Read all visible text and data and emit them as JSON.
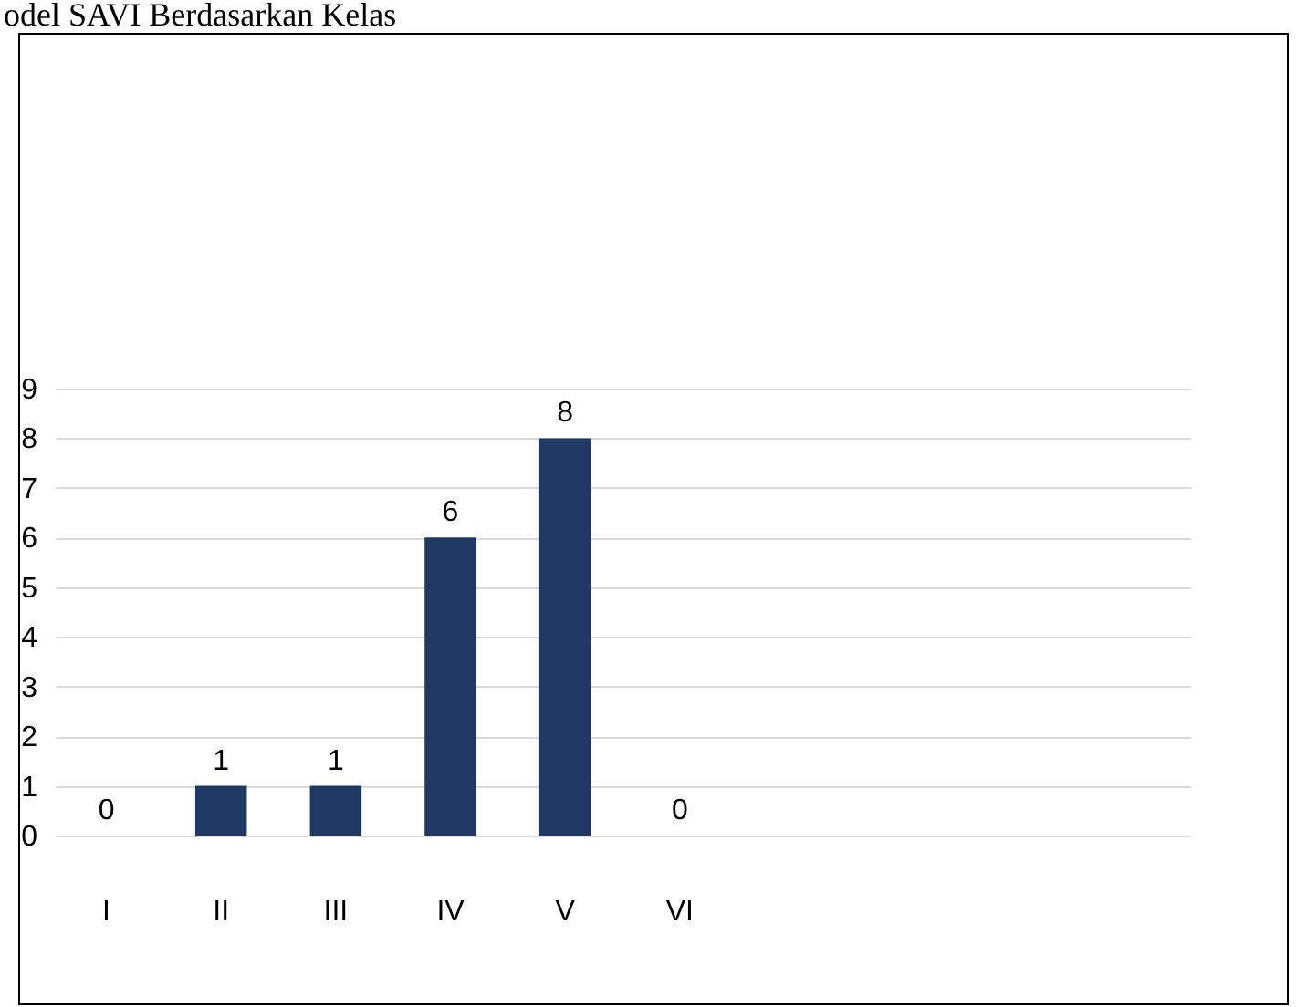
{
  "chart_data": {
    "type": "bar",
    "title": "odel SAVI Berdasarkan Kelas",
    "categories": [
      "I",
      "II",
      "III",
      "IV",
      "V",
      "VI",
      null,
      null,
      null,
      null
    ],
    "values": [
      0,
      1,
      1,
      6,
      8,
      0,
      null,
      null,
      null,
      null
    ],
    "color": "#203864",
    "ylim": [
      0,
      9
    ],
    "yticks": [
      0,
      1,
      2,
      3,
      4,
      5,
      6,
      7,
      8,
      9
    ],
    "grid": "y",
    "data_labels": true
  }
}
